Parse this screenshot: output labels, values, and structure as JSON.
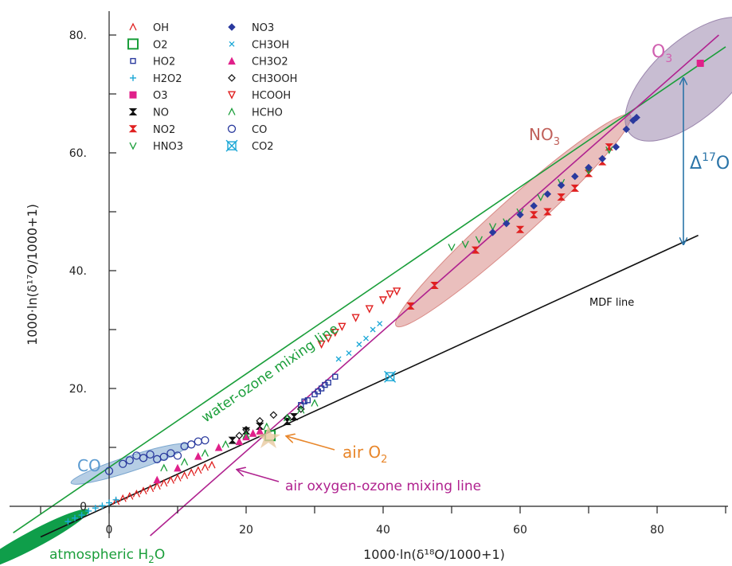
{
  "chart_data": {
    "type": "scatter",
    "xlabel": "1000·ln(δ¹⁸O/1000+1)",
    "ylabel": "1000·ln(δ¹⁷O/1000+1)",
    "xlim": [
      -16,
      90
    ],
    "ylim": [
      -8,
      84
    ],
    "xticks": [
      {
        "value": 0,
        "label": "0"
      },
      {
        "value": 20,
        "label": "20"
      },
      {
        "value": 40,
        "label": "40"
      },
      {
        "value": 60,
        "label": "60"
      },
      {
        "value": 80,
        "label": "80"
      }
    ],
    "yticks": [
      {
        "value": 0,
        "label": "0"
      },
      {
        "value": 20,
        "label": "20."
      },
      {
        "value": 40,
        "label": "40."
      },
      {
        "value": 60,
        "label": "60."
      },
      {
        "value": 80,
        "label": "80."
      }
    ],
    "legend": {
      "placement": "top-left",
      "entries": [
        {
          "label": "OH",
          "color": "#e02020",
          "marker": "caret"
        },
        {
          "label": "O2",
          "color": "#1a9e3a",
          "marker": "square-open-large"
        },
        {
          "label": "HO2",
          "color": "#2a3a9e",
          "marker": "square-open-small"
        },
        {
          "label": "H2O2",
          "color": "#1aa7d6",
          "marker": "plus"
        },
        {
          "label": "O3",
          "color": "#e0208a",
          "marker": "square-filled"
        },
        {
          "label": "NO",
          "color": "#111111",
          "marker": "hourglass"
        },
        {
          "label": "NO2",
          "color": "#e02020",
          "marker": "hourglass"
        },
        {
          "label": "HNO3",
          "color": "#1a9e3a",
          "marker": "v"
        },
        {
          "label": "NO3",
          "color": "#2a3a9e",
          "marker": "diamond-filled"
        },
        {
          "label": "CH3OH",
          "color": "#1aa7d6",
          "marker": "x"
        },
        {
          "label": "CH3O2",
          "color": "#e0208a",
          "marker": "triangle-filled"
        },
        {
          "label": "CH3OOH",
          "color": "#111111",
          "marker": "diamond-open"
        },
        {
          "label": "HCOOH",
          "color": "#e02020",
          "marker": "triangle-down-open"
        },
        {
          "label": "HCHO",
          "color": "#1a9e3a",
          "marker": "caret"
        },
        {
          "label": "CO",
          "color": "#2a3a9e",
          "marker": "circle-open"
        },
        {
          "label": "CO2",
          "color": "#1aa7d6",
          "marker": "box-x"
        }
      ]
    },
    "lines": [
      {
        "name": "MDF line",
        "color": "#111111",
        "points": [
          [
            -10,
            -5.2
          ],
          [
            86,
            46
          ]
        ]
      },
      {
        "name": "water-ozone mixing line",
        "color": "#1a9e3a",
        "points": [
          [
            -14,
            -4.5
          ],
          [
            90,
            78
          ]
        ]
      },
      {
        "name": "air oxygen-ozone mixing line",
        "color": "#b0228f",
        "points": [
          [
            6,
            -5
          ],
          [
            89,
            80
          ]
        ]
      }
    ],
    "regions": [
      {
        "label": "CO",
        "color": "#7aa6cf",
        "center": [
          3,
          7.2
        ],
        "rx": 9,
        "ry": 1.3,
        "angle": 18
      },
      {
        "label": "atmospheric H₂O",
        "color": "#0f9e4a",
        "center": [
          -11,
          -5.6
        ],
        "rx": 9,
        "ry": 1.4,
        "angle": 28
      },
      {
        "label": "NO₃",
        "color": "#d98a86",
        "center": [
          59,
          48.5
        ],
        "rx": 23,
        "ry": 3.2,
        "angle": 42
      },
      {
        "label": "O₃",
        "color": "#9b86ad",
        "center": [
          85,
          72.5
        ],
        "rx": 12,
        "ry": 6.5,
        "angle": 42
      }
    ],
    "annotations": [
      {
        "text": "water-ozone mixing line",
        "color": "#1a9e3a"
      },
      {
        "text": "MDF line",
        "color": "#111111"
      },
      {
        "text": "air O",
        "sub": "2",
        "color": "#e8862a"
      },
      {
        "text": "air oxygen-ozone mixing line",
        "color": "#b0228f"
      },
      {
        "text": "NO",
        "sub": "3",
        "color": "#c0605a"
      },
      {
        "text": "O",
        "sub": "3",
        "color": "#d060b0"
      },
      {
        "text": "CO",
        "color": "#5a9ad0"
      },
      {
        "text": "atmospheric H",
        "sub": "2",
        "tail": "O",
        "color": "#1a9e3a"
      },
      {
        "text": "Δ",
        "sup": "17",
        "tail": "O",
        "color": "#2a74a8"
      }
    ],
    "series": [
      {
        "name": "OH",
        "marker": "caret",
        "color": "#e02020",
        "points": [
          [
            1,
            0.8
          ],
          [
            2,
            1.3
          ],
          [
            3,
            1.7
          ],
          [
            4,
            2.1
          ],
          [
            5,
            2.6
          ],
          [
            6,
            3.0
          ],
          [
            7,
            3.4
          ],
          [
            8,
            3.9
          ],
          [
            9,
            4.4
          ],
          [
            10,
            4.8
          ],
          [
            11,
            5.2
          ],
          [
            12,
            5.7
          ],
          [
            13,
            6.1
          ],
          [
            14,
            6.6
          ],
          [
            15,
            7.0
          ]
        ]
      },
      {
        "name": "O2",
        "marker": "square-open-large",
        "color": "#1a9e3a",
        "points": [
          [
            23.5,
            12.0
          ]
        ]
      },
      {
        "name": "HO2",
        "marker": "square-open-small",
        "color": "#2a3a9e",
        "points": [
          [
            28,
            17.2
          ],
          [
            29,
            18.0
          ],
          [
            30,
            19.0
          ],
          [
            31,
            20.0
          ],
          [
            32,
            21.0
          ],
          [
            33,
            22.0
          ],
          [
            28.5,
            17.8
          ],
          [
            30.5,
            19.5
          ],
          [
            31.5,
            20.6
          ]
        ]
      },
      {
        "name": "H2O2",
        "marker": "plus",
        "color": "#1aa7d6",
        "points": [
          [
            -6,
            -2.6
          ],
          [
            -5,
            -2.0
          ],
          [
            -4,
            -1.5
          ],
          [
            -3,
            -0.8
          ],
          [
            -2,
            -0.3
          ],
          [
            -1,
            0.1
          ],
          [
            0,
            0.6
          ],
          [
            1,
            1.1
          ]
        ]
      },
      {
        "name": "O3",
        "marker": "square-filled",
        "color": "#e0208a",
        "points": [
          [
            86.3,
            75.2
          ]
        ]
      },
      {
        "name": "NO",
        "marker": "hourglass",
        "color": "#111111",
        "points": [
          [
            18,
            11.2
          ],
          [
            20,
            12.8
          ],
          [
            22,
            13.6
          ],
          [
            26,
            14.4
          ],
          [
            27,
            15.2
          ]
        ]
      },
      {
        "name": "NO2",
        "marker": "hourglass",
        "color": "#e02020",
        "points": [
          [
            44,
            34.0
          ],
          [
            47.5,
            37.5
          ],
          [
            53.5,
            43.5
          ],
          [
            60,
            47.0
          ],
          [
            62,
            49.5
          ],
          [
            64,
            50.0
          ],
          [
            66,
            52.5
          ],
          [
            68,
            54.0
          ],
          [
            70,
            56.5
          ],
          [
            72,
            58.5
          ],
          [
            73,
            61.0
          ]
        ]
      },
      {
        "name": "HNO3",
        "marker": "v",
        "color": "#1a9e3a",
        "points": [
          [
            50,
            44.0
          ],
          [
            52,
            44.5
          ],
          [
            54,
            45.3
          ],
          [
            56,
            47.5
          ],
          [
            58,
            48.3
          ],
          [
            60,
            50.0
          ],
          [
            63,
            52.5
          ],
          [
            66,
            55.0
          ],
          [
            70,
            57.0
          ],
          [
            73,
            60.5
          ]
        ]
      },
      {
        "name": "NO3",
        "marker": "diamond-filled",
        "color": "#2a3a9e",
        "points": [
          [
            56,
            46.5
          ],
          [
            58,
            48.0
          ],
          [
            60,
            49.5
          ],
          [
            62,
            51.0
          ],
          [
            64,
            53.0
          ],
          [
            66,
            54.5
          ],
          [
            68,
            56.0
          ],
          [
            70,
            57.5
          ],
          [
            72,
            59.0
          ],
          [
            74,
            61.0
          ],
          [
            75.5,
            64.0
          ],
          [
            76.5,
            65.5
          ],
          [
            77,
            66.0
          ]
        ]
      },
      {
        "name": "CH3OH",
        "marker": "x",
        "color": "#1aa7d6",
        "points": [
          [
            33.5,
            25.0
          ],
          [
            35,
            26.0
          ],
          [
            36.5,
            27.5
          ],
          [
            37.5,
            28.5
          ],
          [
            38.5,
            30.0
          ],
          [
            39.5,
            31.0
          ]
        ]
      },
      {
        "name": "CH3O2",
        "marker": "triangle-filled",
        "color": "#e0208a",
        "points": [
          [
            7,
            4.5
          ],
          [
            10,
            6.5
          ],
          [
            13,
            8.5
          ],
          [
            16,
            10.0
          ],
          [
            19,
            11.0
          ],
          [
            20,
            11.8
          ],
          [
            21,
            12.4
          ],
          [
            22,
            12.8
          ]
        ]
      },
      {
        "name": "CH3OOH",
        "marker": "diamond-open",
        "color": "#111111",
        "points": [
          [
            19,
            12.0
          ],
          [
            20,
            13.0
          ],
          [
            22,
            14.5
          ],
          [
            24,
            15.5
          ],
          [
            26,
            15.0
          ],
          [
            28,
            16.5
          ]
        ]
      },
      {
        "name": "HCOOH",
        "marker": "triangle-down-open",
        "color": "#e02020",
        "points": [
          [
            31,
            27.5
          ],
          [
            32,
            28.5
          ],
          [
            33,
            29.5
          ],
          [
            34,
            30.5
          ],
          [
            36,
            32.0
          ],
          [
            38,
            33.5
          ],
          [
            40,
            35.0
          ],
          [
            41,
            36.0
          ],
          [
            42,
            36.5
          ]
        ]
      },
      {
        "name": "HCHO",
        "marker": "caret",
        "color": "#1a9e3a",
        "points": [
          [
            8,
            6.5
          ],
          [
            11,
            7.5
          ],
          [
            14,
            9.0
          ],
          [
            17,
            10.5
          ],
          [
            20,
            12.0
          ],
          [
            23,
            13.5
          ],
          [
            26,
            15.0
          ],
          [
            28,
            16.3
          ],
          [
            30,
            17.5
          ]
        ]
      },
      {
        "name": "CO",
        "marker": "circle-open",
        "color": "#2a3a9e",
        "points": [
          [
            0,
            6.0
          ],
          [
            2,
            7.2
          ],
          [
            3,
            7.8
          ],
          [
            4,
            8.6
          ],
          [
            5,
            8.2
          ],
          [
            6,
            8.8
          ],
          [
            7,
            8.0
          ],
          [
            8,
            8.4
          ],
          [
            9,
            9.0
          ],
          [
            10,
            8.6
          ],
          [
            11,
            10.2
          ],
          [
            12,
            10.5
          ],
          [
            13,
            11.0
          ],
          [
            14,
            11.2
          ]
        ]
      },
      {
        "name": "CO2",
        "marker": "box-x",
        "color": "#1aa7d6",
        "points": [
          [
            41,
            22.0
          ]
        ]
      }
    ]
  }
}
